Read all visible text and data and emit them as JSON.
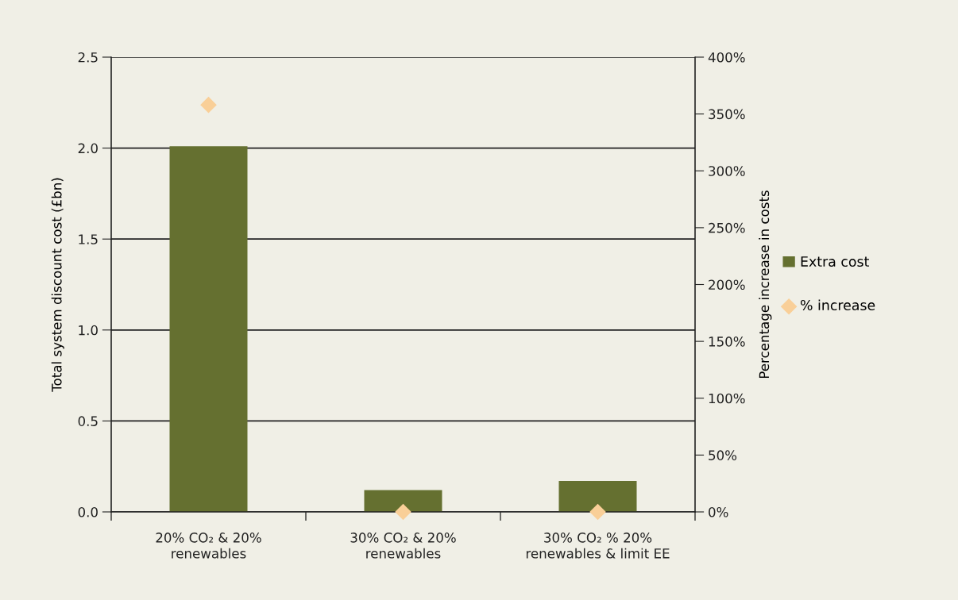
{
  "chart_data": {
    "type": "bar",
    "categories": [
      "20% CO₂ & 20%\nrenewables",
      "30% CO₂ & 20%\nrenewables",
      "30% CO₂ % 20%\nrenewables & limit EE"
    ],
    "ylabel": "Total system discount cost (£bn)",
    "y2label": "Percentage increase in costs",
    "series": [
      {
        "name": "Extra cost",
        "color": "#657030",
        "values": [
          2.01,
          0.12,
          0.17
        ]
      },
      {
        "name": "% increase",
        "type": "scatter",
        "axis": "y2",
        "marker": "diamond",
        "color": "#f9cf98",
        "values": [
          358,
          0,
          0
        ]
      }
    ],
    "ylim": [
      0,
      2.5
    ],
    "yticks": [
      {
        "value": 0,
        "label": "0.0"
      },
      {
        "value": 0.5,
        "label": "0.5"
      },
      {
        "value": 1,
        "label": "1.0"
      },
      {
        "value": 1.5,
        "label": "1.5"
      },
      {
        "value": 2,
        "label": "2.0"
      },
      {
        "value": 2.5,
        "label": "2.5"
      }
    ],
    "y2lim": [
      0,
      400
    ],
    "y2ticks": [
      {
        "value": 0,
        "label": "0%"
      },
      {
        "value": 50,
        "label": "50%"
      },
      {
        "value": 100,
        "label": "100%"
      },
      {
        "value": 150,
        "label": "150%"
      },
      {
        "value": 200,
        "label": "200%"
      },
      {
        "value": 250,
        "label": "250%"
      },
      {
        "value": 300,
        "label": "300%"
      },
      {
        "value": 350,
        "label": "350%"
      },
      {
        "value": 400,
        "label": "400%"
      }
    ],
    "grid": "y",
    "legend": "right"
  }
}
